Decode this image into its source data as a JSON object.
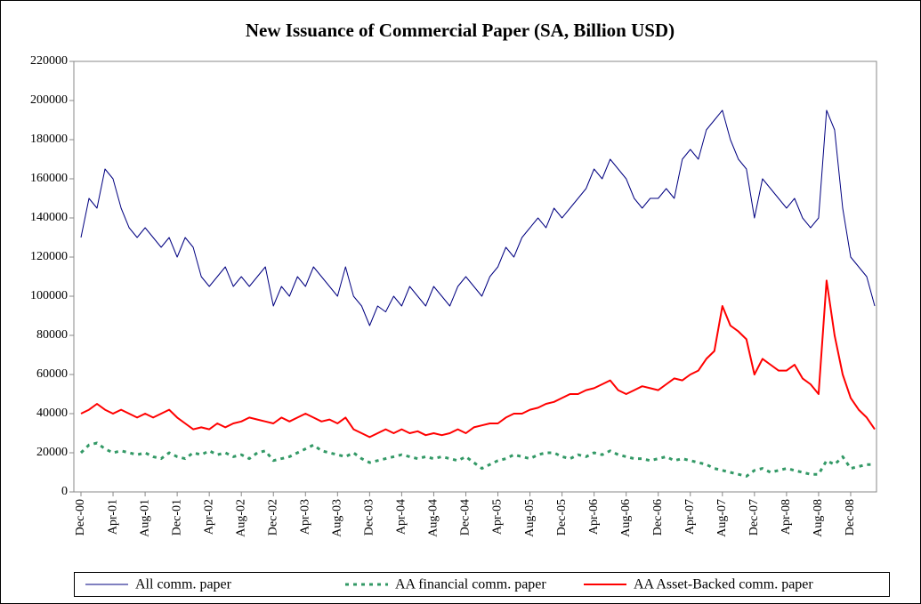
{
  "chart_data": {
    "type": "line",
    "title": "New Issuance of Commercial Paper (SA, Billion USD)",
    "categories": [
      "Dec-00",
      null,
      null,
      null,
      "Apr-01",
      null,
      null,
      null,
      "Aug-01",
      null,
      null,
      null,
      "Dec-01",
      null,
      null,
      null,
      "Apr-02",
      null,
      null,
      null,
      "Aug-02",
      null,
      null,
      null,
      "Dec-02",
      null,
      null,
      null,
      "Apr-03",
      null,
      null,
      null,
      "Aug-03",
      null,
      null,
      null,
      "Dec-03",
      null,
      null,
      null,
      "Apr-04",
      null,
      null,
      null,
      "Aug-04",
      null,
      null,
      null,
      "Dec-04",
      null,
      null,
      null,
      "Apr-05",
      null,
      null,
      null,
      "Aug-05",
      null,
      null,
      null,
      "Dec-05",
      null,
      null,
      null,
      "Apr-06",
      null,
      null,
      null,
      "Aug-06",
      null,
      null,
      null,
      "Dec-06",
      null,
      null,
      null,
      "Apr-07",
      null,
      null,
      null,
      "Aug-07",
      null,
      null,
      null,
      "Dec-07",
      null,
      null,
      null,
      "Apr-08",
      null,
      null,
      null,
      "Aug-08",
      null,
      null,
      null,
      "Dec-08",
      null,
      null,
      null
    ],
    "series": [
      {
        "name": "All comm. paper",
        "color": "#000080",
        "style": "solid",
        "values": [
          130000,
          150000,
          145000,
          165000,
          160000,
          145000,
          135000,
          130000,
          135000,
          130000,
          125000,
          130000,
          120000,
          130000,
          125000,
          110000,
          105000,
          110000,
          115000,
          105000,
          110000,
          105000,
          110000,
          115000,
          95000,
          105000,
          100000,
          110000,
          105000,
          115000,
          110000,
          105000,
          100000,
          115000,
          100000,
          95000,
          85000,
          95000,
          92000,
          100000,
          95000,
          105000,
          100000,
          95000,
          105000,
          100000,
          95000,
          105000,
          110000,
          105000,
          100000,
          110000,
          115000,
          125000,
          120000,
          130000,
          135000,
          140000,
          135000,
          145000,
          140000,
          145000,
          150000,
          155000,
          165000,
          160000,
          170000,
          165000,
          160000,
          150000,
          145000,
          150000,
          150000,
          155000,
          150000,
          170000,
          175000,
          170000,
          185000,
          190000,
          195000,
          180000,
          170000,
          165000,
          140000,
          160000,
          155000,
          150000,
          145000,
          150000,
          140000,
          135000,
          140000,
          195000,
          185000,
          145000,
          120000,
          115000,
          110000,
          95000
        ]
      },
      {
        "name": "AA financial comm. paper",
        "color": "#339966",
        "style": "dashed",
        "values": [
          20000,
          24000,
          25000,
          22000,
          20000,
          21000,
          20000,
          19000,
          20000,
          18000,
          17000,
          20000,
          18000,
          17000,
          20000,
          19000,
          21000,
          19000,
          20000,
          18000,
          19000,
          17000,
          20000,
          21000,
          16000,
          17000,
          18000,
          20000,
          22000,
          24000,
          21000,
          20000,
          19000,
          18000,
          20000,
          17000,
          15000,
          16000,
          17000,
          18000,
          19000,
          18000,
          17000,
          18000,
          17000,
          18000,
          17000,
          16000,
          18000,
          15000,
          12000,
          14000,
          16000,
          17000,
          19000,
          18000,
          17000,
          19000,
          20000,
          20000,
          18000,
          17000,
          19000,
          18000,
          20000,
          19000,
          21000,
          19000,
          18000,
          17000,
          17000,
          16000,
          17000,
          18000,
          16000,
          17000,
          16000,
          15000,
          14000,
          12000,
          11000,
          10000,
          9000,
          8000,
          11000,
          12000,
          10000,
          11000,
          12000,
          11000,
          10000,
          9000,
          9000,
          16000,
          14000,
          18000,
          12000,
          13000,
          14000,
          14000
        ]
      },
      {
        "name": "AA Asset-Backed comm. paper",
        "color": "#ff0000",
        "style": "solid",
        "values": [
          40000,
          42000,
          45000,
          42000,
          40000,
          42000,
          40000,
          38000,
          40000,
          38000,
          40000,
          42000,
          38000,
          35000,
          32000,
          33000,
          32000,
          35000,
          33000,
          35000,
          36000,
          38000,
          37000,
          36000,
          35000,
          38000,
          36000,
          38000,
          40000,
          38000,
          36000,
          37000,
          35000,
          38000,
          32000,
          30000,
          28000,
          30000,
          32000,
          30000,
          32000,
          30000,
          31000,
          29000,
          30000,
          29000,
          30000,
          32000,
          30000,
          33000,
          34000,
          35000,
          35000,
          38000,
          40000,
          40000,
          42000,
          43000,
          45000,
          46000,
          48000,
          50000,
          50000,
          52000,
          53000,
          55000,
          57000,
          52000,
          50000,
          52000,
          54000,
          53000,
          52000,
          55000,
          58000,
          57000,
          60000,
          62000,
          68000,
          72000,
          95000,
          85000,
          82000,
          78000,
          60000,
          68000,
          65000,
          62000,
          62000,
          65000,
          58000,
          55000,
          50000,
          108000,
          80000,
          60000,
          48000,
          42000,
          38000,
          32000
        ]
      }
    ],
    "ylim": [
      0,
      220000
    ],
    "yticks": [
      0,
      20000,
      40000,
      60000,
      80000,
      100000,
      120000,
      140000,
      160000,
      180000,
      200000,
      220000
    ]
  }
}
